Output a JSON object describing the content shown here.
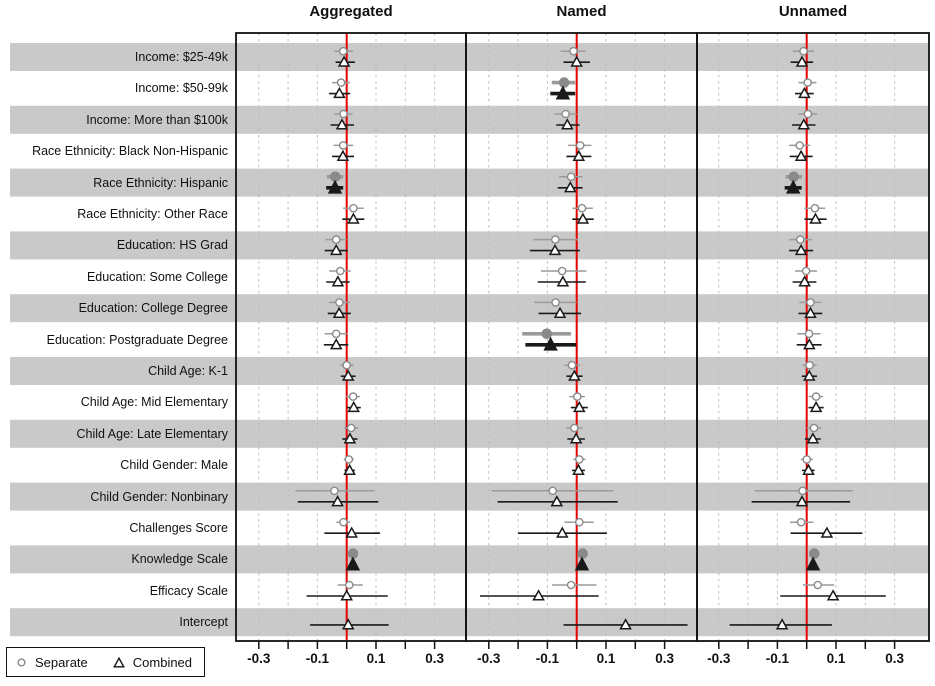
{
  "titles": [
    "Aggregated",
    "Named",
    "Unnamed"
  ],
  "legend": {
    "separate_label": "Separate",
    "combined_label": "Combined"
  },
  "axis": {
    "tick_labels": [
      "-0.3",
      "-0.1",
      "0.1",
      "0.3"
    ],
    "tick_label_values": [
      -0.3,
      -0.1,
      0.1,
      0.3
    ],
    "minor_tick_values": [
      -0.3,
      -0.2,
      -0.1,
      0,
      0.1,
      0.2,
      0.3
    ]
  },
  "colors": {
    "band_gray": "#c9c9c9",
    "separate_gray": "#9a9a9a",
    "separate_fill_sig": "#8a8a8a",
    "combined_black": "#1a1a1a",
    "zero_line_red": "#e60000",
    "gridline": "#bdbdbd",
    "border": "#111111"
  },
  "chart_data": {
    "type": "scatter",
    "subtype": "forest-plot",
    "title": "",
    "xlabel": "",
    "ylabel": "",
    "xlim": [
      -0.4,
      0.4
    ],
    "zero_reference_line": 0,
    "gridlines_x": [
      -0.3,
      -0.2,
      -0.1,
      0.1,
      0.2,
      0.3
    ],
    "legend_position": "bottom-left",
    "categories": [
      "Income: $25-49k",
      "Income: $50-99k",
      "Income: More than $100k",
      "Race Ethnicity: Black Non-Hispanic",
      "Race Ethnicity: Hispanic",
      "Race Ethnicity: Other Race",
      "Education: HS Grad",
      "Education: Some College",
      "Education: College Degree",
      "Education: Postgraduate Degree",
      "Child Age: K-1",
      "Child Age: Mid Elementary",
      "Child Age: Late Elementary",
      "Child Gender: Male",
      "Child Gender: Nonbinary",
      "Challenges Score",
      "Knowledge Scale",
      "Efficacy Scale",
      "Intercept"
    ],
    "point_format": "[estimate, ci_low, ci_high, significant(0/1)] — null = not shown",
    "panels": [
      {
        "name": "Aggregated",
        "series": [
          {
            "name": "Separate",
            "points": [
              [
                -0.012,
                -0.042,
                0.022,
                0
              ],
              [
                -0.019,
                -0.05,
                0.012,
                0
              ],
              [
                -0.011,
                -0.042,
                0.02,
                0
              ],
              [
                -0.012,
                -0.045,
                0.022,
                0
              ],
              [
                -0.039,
                -0.068,
                -0.012,
                1
              ],
              [
                0.023,
                -0.012,
                0.058,
                0
              ],
              [
                -0.036,
                -0.072,
                0.0,
                0
              ],
              [
                -0.022,
                -0.06,
                0.014,
                0
              ],
              [
                -0.025,
                -0.06,
                0.012,
                0
              ],
              [
                -0.036,
                -0.075,
                0.002,
                0
              ],
              [
                0.0,
                -0.022,
                0.024,
                0
              ],
              [
                0.022,
                -0.002,
                0.045,
                0
              ],
              [
                0.015,
                -0.01,
                0.04,
                0
              ],
              [
                0.007,
                -0.01,
                0.025,
                0
              ],
              [
                -0.042,
                -0.175,
                0.095,
                0
              ],
              [
                -0.011,
                -0.035,
                0.012,
                0
              ],
              [
                0.022,
                0.012,
                0.032,
                1
              ],
              [
                0.009,
                -0.031,
                0.055,
                0
              ],
              null
            ]
          },
          {
            "name": "Combined",
            "points": [
              [
                -0.009,
                -0.038,
                0.028,
                0
              ],
              [
                -0.025,
                -0.06,
                0.012,
                0
              ],
              [
                -0.016,
                -0.055,
                0.025,
                0
              ],
              [
                -0.013,
                -0.05,
                0.025,
                0
              ],
              [
                -0.04,
                -0.07,
                -0.012,
                1
              ],
              [
                0.023,
                -0.015,
                0.06,
                0
              ],
              [
                -0.036,
                -0.075,
                0.004,
                0
              ],
              [
                -0.03,
                -0.07,
                0.01,
                0
              ],
              [
                -0.026,
                -0.065,
                0.014,
                0
              ],
              [
                -0.036,
                -0.078,
                0.005,
                0
              ],
              [
                0.005,
                -0.02,
                0.03,
                0
              ],
              [
                0.024,
                0.0,
                0.048,
                0
              ],
              [
                0.011,
                -0.015,
                0.037,
                0
              ],
              [
                0.01,
                -0.008,
                0.028,
                0
              ],
              [
                -0.031,
                -0.167,
                0.108,
                0
              ],
              [
                0.017,
                -0.076,
                0.114,
                0
              ],
              [
                0.021,
                0.011,
                0.031,
                1
              ],
              [
                0.0,
                -0.137,
                0.14,
                0
              ],
              [
                0.005,
                -0.125,
                0.143,
                0
              ]
            ]
          }
        ]
      },
      {
        "name": "Named",
        "series": [
          {
            "name": "Separate",
            "points": [
              [
                -0.011,
                -0.055,
                0.03,
                0
              ],
              [
                -0.043,
                -0.085,
                -0.005,
                1
              ],
              [
                -0.038,
                -0.075,
                0.0,
                0
              ],
              [
                0.012,
                -0.03,
                0.05,
                0
              ],
              [
                -0.019,
                -0.06,
                0.02,
                0
              ],
              [
                0.018,
                -0.015,
                0.055,
                0
              ],
              [
                -0.073,
                -0.148,
                0.005,
                0
              ],
              [
                -0.05,
                -0.122,
                0.033,
                0
              ],
              [
                -0.072,
                -0.145,
                0.0,
                0
              ],
              [
                -0.102,
                -0.186,
                -0.019,
                1
              ],
              [
                -0.016,
                -0.042,
                0.012,
                0
              ],
              [
                0.002,
                -0.025,
                0.028,
                0
              ],
              [
                -0.008,
                -0.036,
                0.02,
                0
              ],
              [
                0.009,
                -0.012,
                0.03,
                0
              ],
              [
                -0.082,
                -0.29,
                0.125,
                0
              ],
              [
                0.009,
                -0.042,
                0.058,
                0
              ],
              [
                0.02,
                0.01,
                0.031,
                1
              ],
              [
                -0.019,
                -0.084,
                0.068,
                0
              ],
              null
            ]
          },
          {
            "name": "Combined",
            "points": [
              [
                0.0,
                -0.045,
                0.045,
                0
              ],
              [
                -0.047,
                -0.09,
                -0.005,
                1
              ],
              [
                -0.032,
                -0.07,
                0.01,
                0
              ],
              [
                0.007,
                -0.035,
                0.05,
                0
              ],
              [
                -0.022,
                -0.065,
                0.02,
                0
              ],
              [
                0.021,
                -0.015,
                0.058,
                0
              ],
              [
                -0.074,
                -0.16,
                0.011,
                0
              ],
              [
                -0.047,
                -0.133,
                0.031,
                0
              ],
              [
                -0.057,
                -0.13,
                0.015,
                0
              ],
              [
                -0.089,
                -0.175,
                -0.002,
                1
              ],
              [
                -0.008,
                -0.035,
                0.02,
                0
              ],
              [
                0.009,
                -0.02,
                0.038,
                0
              ],
              [
                -0.002,
                -0.032,
                0.028,
                0
              ],
              [
                0.006,
                -0.016,
                0.028,
                0
              ],
              [
                -0.068,
                -0.27,
                0.14,
                0
              ],
              [
                -0.049,
                -0.2,
                0.103,
                0
              ],
              [
                0.018,
                0.008,
                0.029,
                1
              ],
              [
                -0.13,
                -0.33,
                0.075,
                0
              ],
              [
                0.167,
                -0.045,
                0.378,
                0
              ]
            ]
          }
        ]
      },
      {
        "name": "Unnamed",
        "series": [
          {
            "name": "Separate",
            "points": [
              [
                -0.011,
                -0.048,
                0.025,
                0
              ],
              [
                0.003,
                -0.028,
                0.033,
                0
              ],
              [
                0.004,
                -0.028,
                0.036,
                0
              ],
              [
                -0.024,
                -0.06,
                0.012,
                0
              ],
              [
                -0.044,
                -0.072,
                -0.016,
                1
              ],
              [
                0.028,
                -0.008,
                0.063,
                0
              ],
              [
                -0.022,
                -0.06,
                0.017,
                0
              ],
              [
                -0.002,
                -0.04,
                0.035,
                0
              ],
              [
                0.013,
                -0.025,
                0.05,
                0
              ],
              [
                0.008,
                -0.032,
                0.047,
                0
              ],
              [
                0.01,
                -0.015,
                0.034,
                0
              ],
              [
                0.032,
                0.007,
                0.056,
                0
              ],
              [
                0.025,
                0.0,
                0.05,
                0
              ],
              [
                0.0,
                -0.02,
                0.021,
                0
              ],
              [
                -0.014,
                -0.177,
                0.157,
                0
              ],
              [
                -0.019,
                -0.057,
                0.023,
                0
              ],
              [
                0.026,
                0.015,
                0.036,
                1
              ],
              [
                0.038,
                -0.013,
                0.094,
                0
              ],
              null
            ]
          },
          {
            "name": "Combined",
            "points": [
              [
                -0.016,
                -0.055,
                0.022,
                0
              ],
              [
                -0.008,
                -0.04,
                0.024,
                0
              ],
              [
                -0.01,
                -0.05,
                0.03,
                0
              ],
              [
                -0.019,
                -0.058,
                0.02,
                0
              ],
              [
                -0.046,
                -0.075,
                -0.017,
                1
              ],
              [
                0.03,
                -0.008,
                0.068,
                0
              ],
              [
                -0.019,
                -0.06,
                0.022,
                0
              ],
              [
                -0.007,
                -0.048,
                0.033,
                0
              ],
              [
                0.013,
                -0.028,
                0.053,
                0
              ],
              [
                0.009,
                -0.034,
                0.051,
                0
              ],
              [
                0.009,
                -0.017,
                0.035,
                0
              ],
              [
                0.032,
                0.006,
                0.058,
                0
              ],
              [
                0.021,
                -0.006,
                0.048,
                0
              ],
              [
                0.006,
                -0.016,
                0.027,
                0
              ],
              [
                -0.016,
                -0.188,
                0.148,
                0
              ],
              [
                0.069,
                -0.055,
                0.19,
                0
              ],
              [
                0.022,
                0.012,
                0.033,
                1
              ],
              [
                0.09,
                -0.09,
                0.27,
                0
              ],
              [
                -0.084,
                -0.263,
                0.086,
                0
              ]
            ]
          }
        ]
      }
    ]
  }
}
